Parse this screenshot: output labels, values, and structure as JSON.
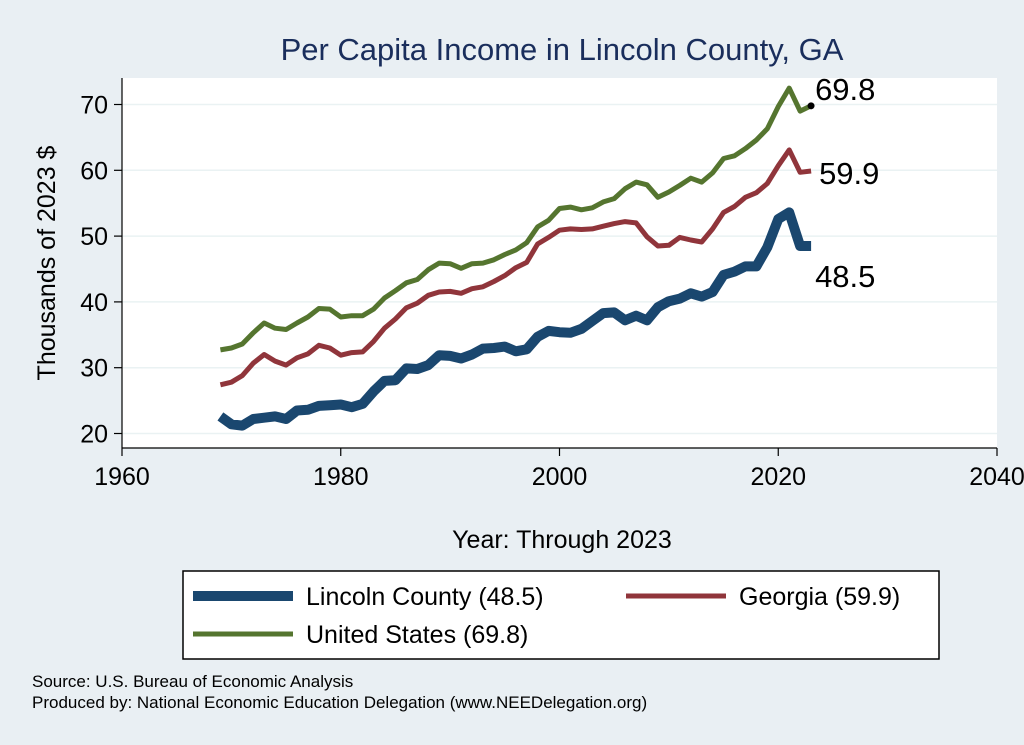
{
  "chart_data": {
    "type": "line",
    "title": "Per Capita Income in Lincoln County, GA",
    "xlabel": "Year: Through 2023",
    "ylabel": "Thousands of 2023 $",
    "xlim": [
      1960,
      2040
    ],
    "ylim": [
      20,
      75
    ],
    "xticks": [
      1960,
      1980,
      2000,
      2020,
      2040
    ],
    "yticks": [
      20,
      30,
      40,
      50,
      60,
      70
    ],
    "grid": true,
    "legend_position": "bottom",
    "x": [
      1969,
      1970,
      1971,
      1972,
      1973,
      1974,
      1975,
      1976,
      1977,
      1978,
      1979,
      1980,
      1981,
      1982,
      1983,
      1984,
      1985,
      1986,
      1987,
      1988,
      1989,
      1990,
      1991,
      1992,
      1993,
      1994,
      1995,
      1996,
      1997,
      1998,
      1999,
      2000,
      2001,
      2002,
      2003,
      2004,
      2005,
      2006,
      2007,
      2008,
      2009,
      2010,
      2011,
      2012,
      2013,
      2014,
      2015,
      2016,
      2017,
      2018,
      2019,
      2020,
      2021,
      2022,
      2023
    ],
    "series": [
      {
        "name": "Lincoln County (48.5)",
        "color": "#1a476f",
        "end_label": "48.5",
        "values": [
          22.6,
          21.4,
          21.2,
          22.2,
          22.4,
          22.6,
          22.2,
          23.5,
          23.6,
          24.2,
          24.3,
          24.4,
          24.0,
          24.5,
          26.4,
          28.0,
          28.1,
          29.9,
          29.8,
          30.4,
          31.9,
          31.8,
          31.4,
          32.0,
          32.9,
          33.0,
          33.2,
          32.5,
          32.8,
          34.7,
          35.6,
          35.4,
          35.3,
          35.9,
          37.1,
          38.3,
          38.4,
          37.2,
          37.9,
          37.2,
          39.2,
          40.1,
          40.5,
          41.3,
          40.8,
          41.5,
          44.1,
          44.6,
          45.4,
          45.4,
          48.3,
          52.6,
          53.6,
          48.5,
          48.5
        ]
      },
      {
        "name": "Georgia (59.9)",
        "color": "#90353b",
        "end_label": "59.9",
        "values": [
          27.4,
          27.8,
          28.8,
          30.7,
          32.0,
          31.0,
          30.4,
          31.5,
          32.1,
          33.4,
          33.0,
          31.9,
          32.3,
          32.4,
          34.0,
          36.0,
          37.4,
          39.1,
          39.8,
          41.0,
          41.5,
          41.6,
          41.3,
          42.0,
          42.3,
          43.1,
          44.0,
          45.2,
          46.0,
          48.8,
          49.8,
          50.9,
          51.1,
          51.0,
          51.1,
          51.5,
          51.9,
          52.2,
          52.0,
          49.9,
          48.5,
          48.6,
          49.8,
          49.4,
          49.1,
          51.1,
          53.6,
          54.5,
          55.9,
          56.6,
          58.0,
          60.7,
          63.1,
          59.7,
          59.9
        ]
      },
      {
        "name": "United States (69.8)",
        "color": "#55752f",
        "end_label": "69.8",
        "values": [
          32.7,
          33.0,
          33.6,
          35.3,
          36.8,
          36.0,
          35.8,
          36.8,
          37.7,
          39.0,
          38.9,
          37.7,
          37.9,
          37.9,
          38.9,
          40.6,
          41.7,
          42.9,
          43.4,
          44.9,
          45.9,
          45.8,
          45.1,
          45.8,
          45.9,
          46.4,
          47.2,
          47.9,
          49.0,
          51.4,
          52.4,
          54.2,
          54.4,
          54.0,
          54.3,
          55.2,
          55.7,
          57.2,
          58.2,
          57.8,
          55.9,
          56.7,
          57.7,
          58.8,
          58.2,
          59.6,
          61.8,
          62.2,
          63.3,
          64.6,
          66.3,
          69.7,
          72.5,
          69.0,
          69.8
        ]
      }
    ]
  },
  "notes": {
    "source": "Source: U.S. Bureau of Economic Analysis",
    "produced_by": "Produced by: National Economic Education Delegation (www.NEEDelegation.org)"
  }
}
